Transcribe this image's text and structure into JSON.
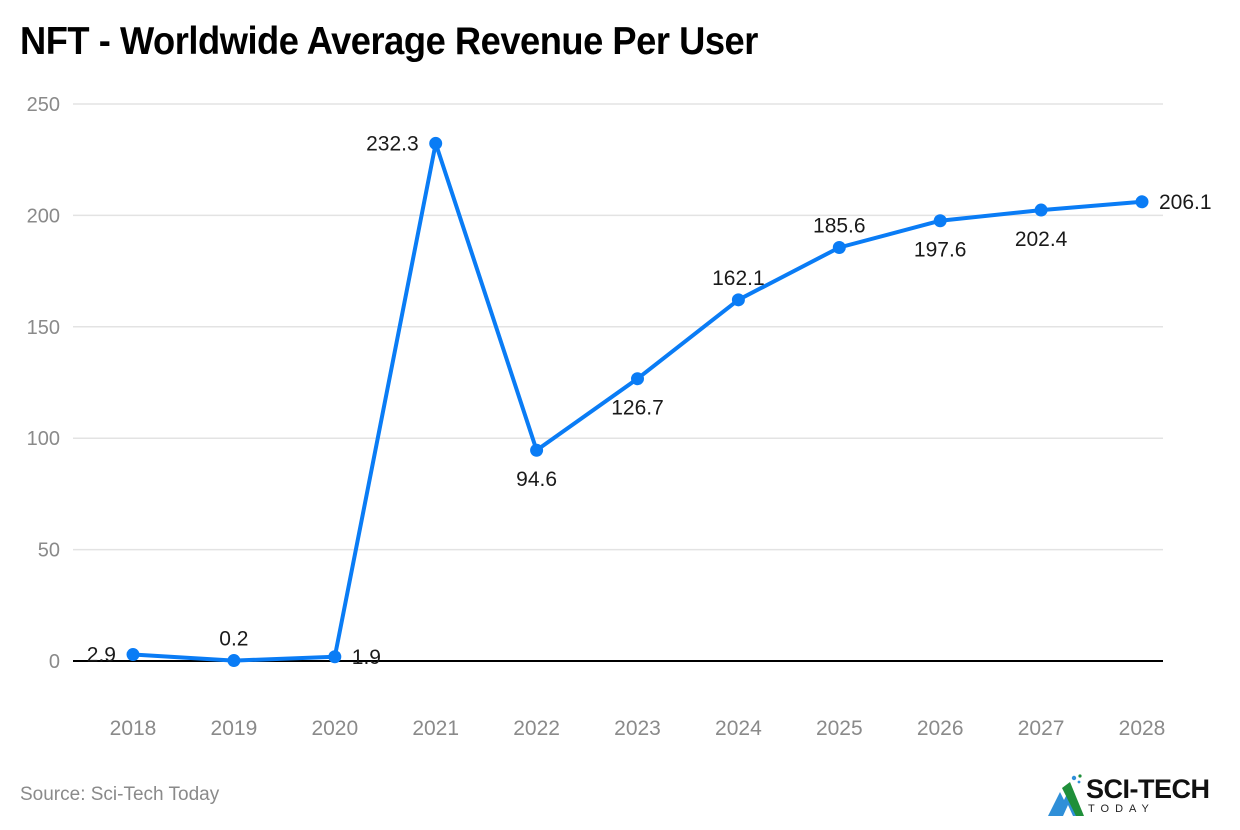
{
  "title": "NFT - Worldwide Average Revenue Per User",
  "source": "Source: Sci-Tech Today",
  "logo": {
    "name": "SCI-TECH",
    "sub": "TODAY"
  },
  "colors": {
    "line": "#0a7cf5",
    "grid": "#e3e3e3",
    "axis": "#000000",
    "tick": "#8a8a8a",
    "label": "#1a1a1a"
  },
  "chart_data": {
    "type": "line",
    "title": "NFT - Worldwide Average Revenue Per User",
    "xlabel": "",
    "ylabel": "",
    "categories": [
      "2018",
      "2019",
      "2020",
      "2021",
      "2022",
      "2023",
      "2024",
      "2025",
      "2026",
      "2027",
      "2028"
    ],
    "series": [
      {
        "name": "Average Revenue Per User",
        "values": [
          2.9,
          0.2,
          1.9,
          232.3,
          94.6,
          126.7,
          162.1,
          185.6,
          197.6,
          202.4,
          206.1
        ]
      }
    ],
    "data_labels": [
      "2.9",
      "0.2",
      "1.9",
      "232.3",
      "94.6",
      "126.7",
      "162.1",
      "185.6",
      "197.6",
      "202.4",
      "206.1"
    ],
    "label_positions": [
      "left",
      "above",
      "right",
      "left",
      "below",
      "below",
      "above",
      "above",
      "below",
      "below",
      "right"
    ],
    "yticks": [
      0,
      50,
      100,
      150,
      200,
      250
    ],
    "ylim": [
      0,
      250
    ],
    "grid": true,
    "legend": "none"
  }
}
